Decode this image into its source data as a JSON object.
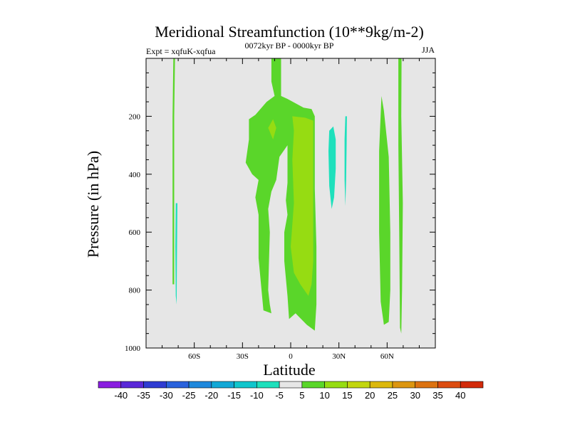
{
  "chart_data": {
    "type": "contour",
    "title": "Meridional Streamfunction (10**9kg/m-2)",
    "subtitle_left": "Expt = xqfuK-xqfua",
    "subtitle_center": "0072kyr BP - 0000kyr BP",
    "subtitle_right": "JJA",
    "xlabel": "Latitude",
    "ylabel": "Pressure (in hPa)",
    "xlim": [
      -90,
      90
    ],
    "ylim": [
      0,
      1000
    ],
    "y_inverted": true,
    "x_ticks": [
      {
        "value": -60,
        "label": "60S"
      },
      {
        "value": -30,
        "label": "30S"
      },
      {
        "value": 0,
        "label": "0"
      },
      {
        "value": 30,
        "label": "30N"
      },
      {
        "value": 60,
        "label": "60N"
      }
    ],
    "y_ticks": [
      {
        "value": 200,
        "label": "200"
      },
      {
        "value": 400,
        "label": "400"
      },
      {
        "value": 600,
        "label": "600"
      },
      {
        "value": 800,
        "label": "800"
      },
      {
        "value": 1000,
        "label": "1000"
      }
    ],
    "colorbar": {
      "labels": [
        "-40",
        "-35",
        "-30",
        "-25",
        "-20",
        "-15",
        "-10",
        "-5",
        "5",
        "10",
        "15",
        "20",
        "25",
        "30",
        "35",
        "40"
      ],
      "colors": [
        "#8a1ee0",
        "#5a28d8",
        "#2f3cd2",
        "#2a62dc",
        "#1e88dc",
        "#12a8d6",
        "#10c6cc",
        "#1ee0bc",
        "#e6e6e6",
        "#5ad62a",
        "#96dc12",
        "#c2d60e",
        "#dcb80c",
        "#dc9610",
        "#dc7210",
        "#dc4c10",
        "#d22a0a"
      ]
    },
    "background_color": "#e6e6e6",
    "regions": [
      {
        "color": "#5ad62a",
        "level": 5,
        "points": [
          [
            -73,
            0
          ],
          [
            -72,
            0
          ],
          [
            -72.5,
            200
          ],
          [
            -72.5,
            500
          ],
          [
            -72.5,
            780
          ],
          [
            -73.5,
            780
          ],
          [
            -73.5,
            500
          ],
          [
            -73.5,
            200
          ]
        ]
      },
      {
        "color": "#1ee0bc",
        "level": -5,
        "points": [
          [
            -71.5,
            500
          ],
          [
            -70.5,
            500
          ],
          [
            -70.8,
            700
          ],
          [
            -71,
            850
          ],
          [
            -71.5,
            820
          ],
          [
            -71.8,
            650
          ]
        ]
      },
      {
        "color": "#5ad62a",
        "level": 5,
        "points": [
          [
            -12,
            0
          ],
          [
            -6,
            0
          ],
          [
            -6,
            130
          ],
          [
            -2,
            140
          ],
          [
            8,
            170
          ],
          [
            13,
            175
          ],
          [
            15,
            200
          ],
          [
            15,
            450
          ],
          [
            16,
            650
          ],
          [
            16,
            850
          ],
          [
            15,
            940
          ],
          [
            10,
            920
          ],
          [
            3,
            880
          ],
          [
            -1,
            900
          ],
          [
            -2,
            820
          ],
          [
            -4,
            700
          ],
          [
            -4,
            600
          ],
          [
            -2,
            540
          ],
          [
            -3,
            490
          ],
          [
            -2,
            430
          ],
          [
            -2,
            300
          ],
          [
            -7,
            340
          ],
          [
            -9,
            420
          ],
          [
            -12,
            460
          ],
          [
            -14,
            520
          ],
          [
            -13,
            600
          ],
          [
            -14,
            800
          ],
          [
            -13,
            850
          ],
          [
            -12,
            880
          ],
          [
            -17,
            870
          ],
          [
            -20,
            690
          ],
          [
            -20,
            540
          ],
          [
            -22,
            480
          ],
          [
            -20,
            420
          ],
          [
            -24,
            400
          ],
          [
            -28,
            360
          ],
          [
            -26,
            280
          ],
          [
            -26,
            210
          ],
          [
            -22,
            195
          ],
          [
            -15,
            150
          ],
          [
            -10,
            130
          ],
          [
            -12,
            80
          ]
        ]
      },
      {
        "color": "#96dc12",
        "level": 10,
        "points": [
          [
            1,
            200
          ],
          [
            9,
            205
          ],
          [
            14,
            215
          ],
          [
            14,
            350
          ],
          [
            14,
            700
          ],
          [
            13,
            780
          ],
          [
            11,
            820
          ],
          [
            6,
            780
          ],
          [
            2,
            740
          ],
          [
            0,
            650
          ],
          [
            2,
            500
          ],
          [
            1,
            350
          ],
          [
            2,
            250
          ]
        ]
      },
      {
        "color": "#96dc12",
        "level": 10,
        "points": [
          [
            -14,
            240
          ],
          [
            -11,
            210
          ],
          [
            -9,
            240
          ],
          [
            -11,
            280
          ]
        ]
      },
      {
        "color": "#1ee0bc",
        "level": -5,
        "points": [
          [
            24,
            250
          ],
          [
            26.5,
            235
          ],
          [
            28,
            280
          ],
          [
            28,
            380
          ],
          [
            27,
            480
          ],
          [
            25.5,
            520
          ],
          [
            24,
            440
          ],
          [
            23.5,
            320
          ]
        ]
      },
      {
        "color": "#1ee0bc",
        "level": -5,
        "points": [
          [
            34,
            200
          ],
          [
            35,
            200
          ],
          [
            34.8,
            300
          ],
          [
            34.5,
            420
          ],
          [
            34,
            510
          ],
          [
            33.5,
            420
          ],
          [
            33.5,
            280
          ]
        ]
      },
      {
        "color": "#5ad62a",
        "level": 5,
        "points": [
          [
            56.5,
            130
          ],
          [
            58,
            180
          ],
          [
            61,
            340
          ],
          [
            62,
            600
          ],
          [
            62,
            800
          ],
          [
            61,
            910
          ],
          [
            58,
            920
          ],
          [
            56,
            840
          ],
          [
            55,
            600
          ],
          [
            55,
            320
          ]
        ]
      },
      {
        "color": "#5ad62a",
        "level": 5,
        "points": [
          [
            67,
            0
          ],
          [
            69,
            0
          ],
          [
            68.8,
            200
          ],
          [
            69.8,
            500
          ],
          [
            69.3,
            800
          ],
          [
            68.8,
            950
          ],
          [
            68,
            930
          ],
          [
            67.5,
            600
          ],
          [
            67,
            300
          ]
        ]
      }
    ]
  }
}
